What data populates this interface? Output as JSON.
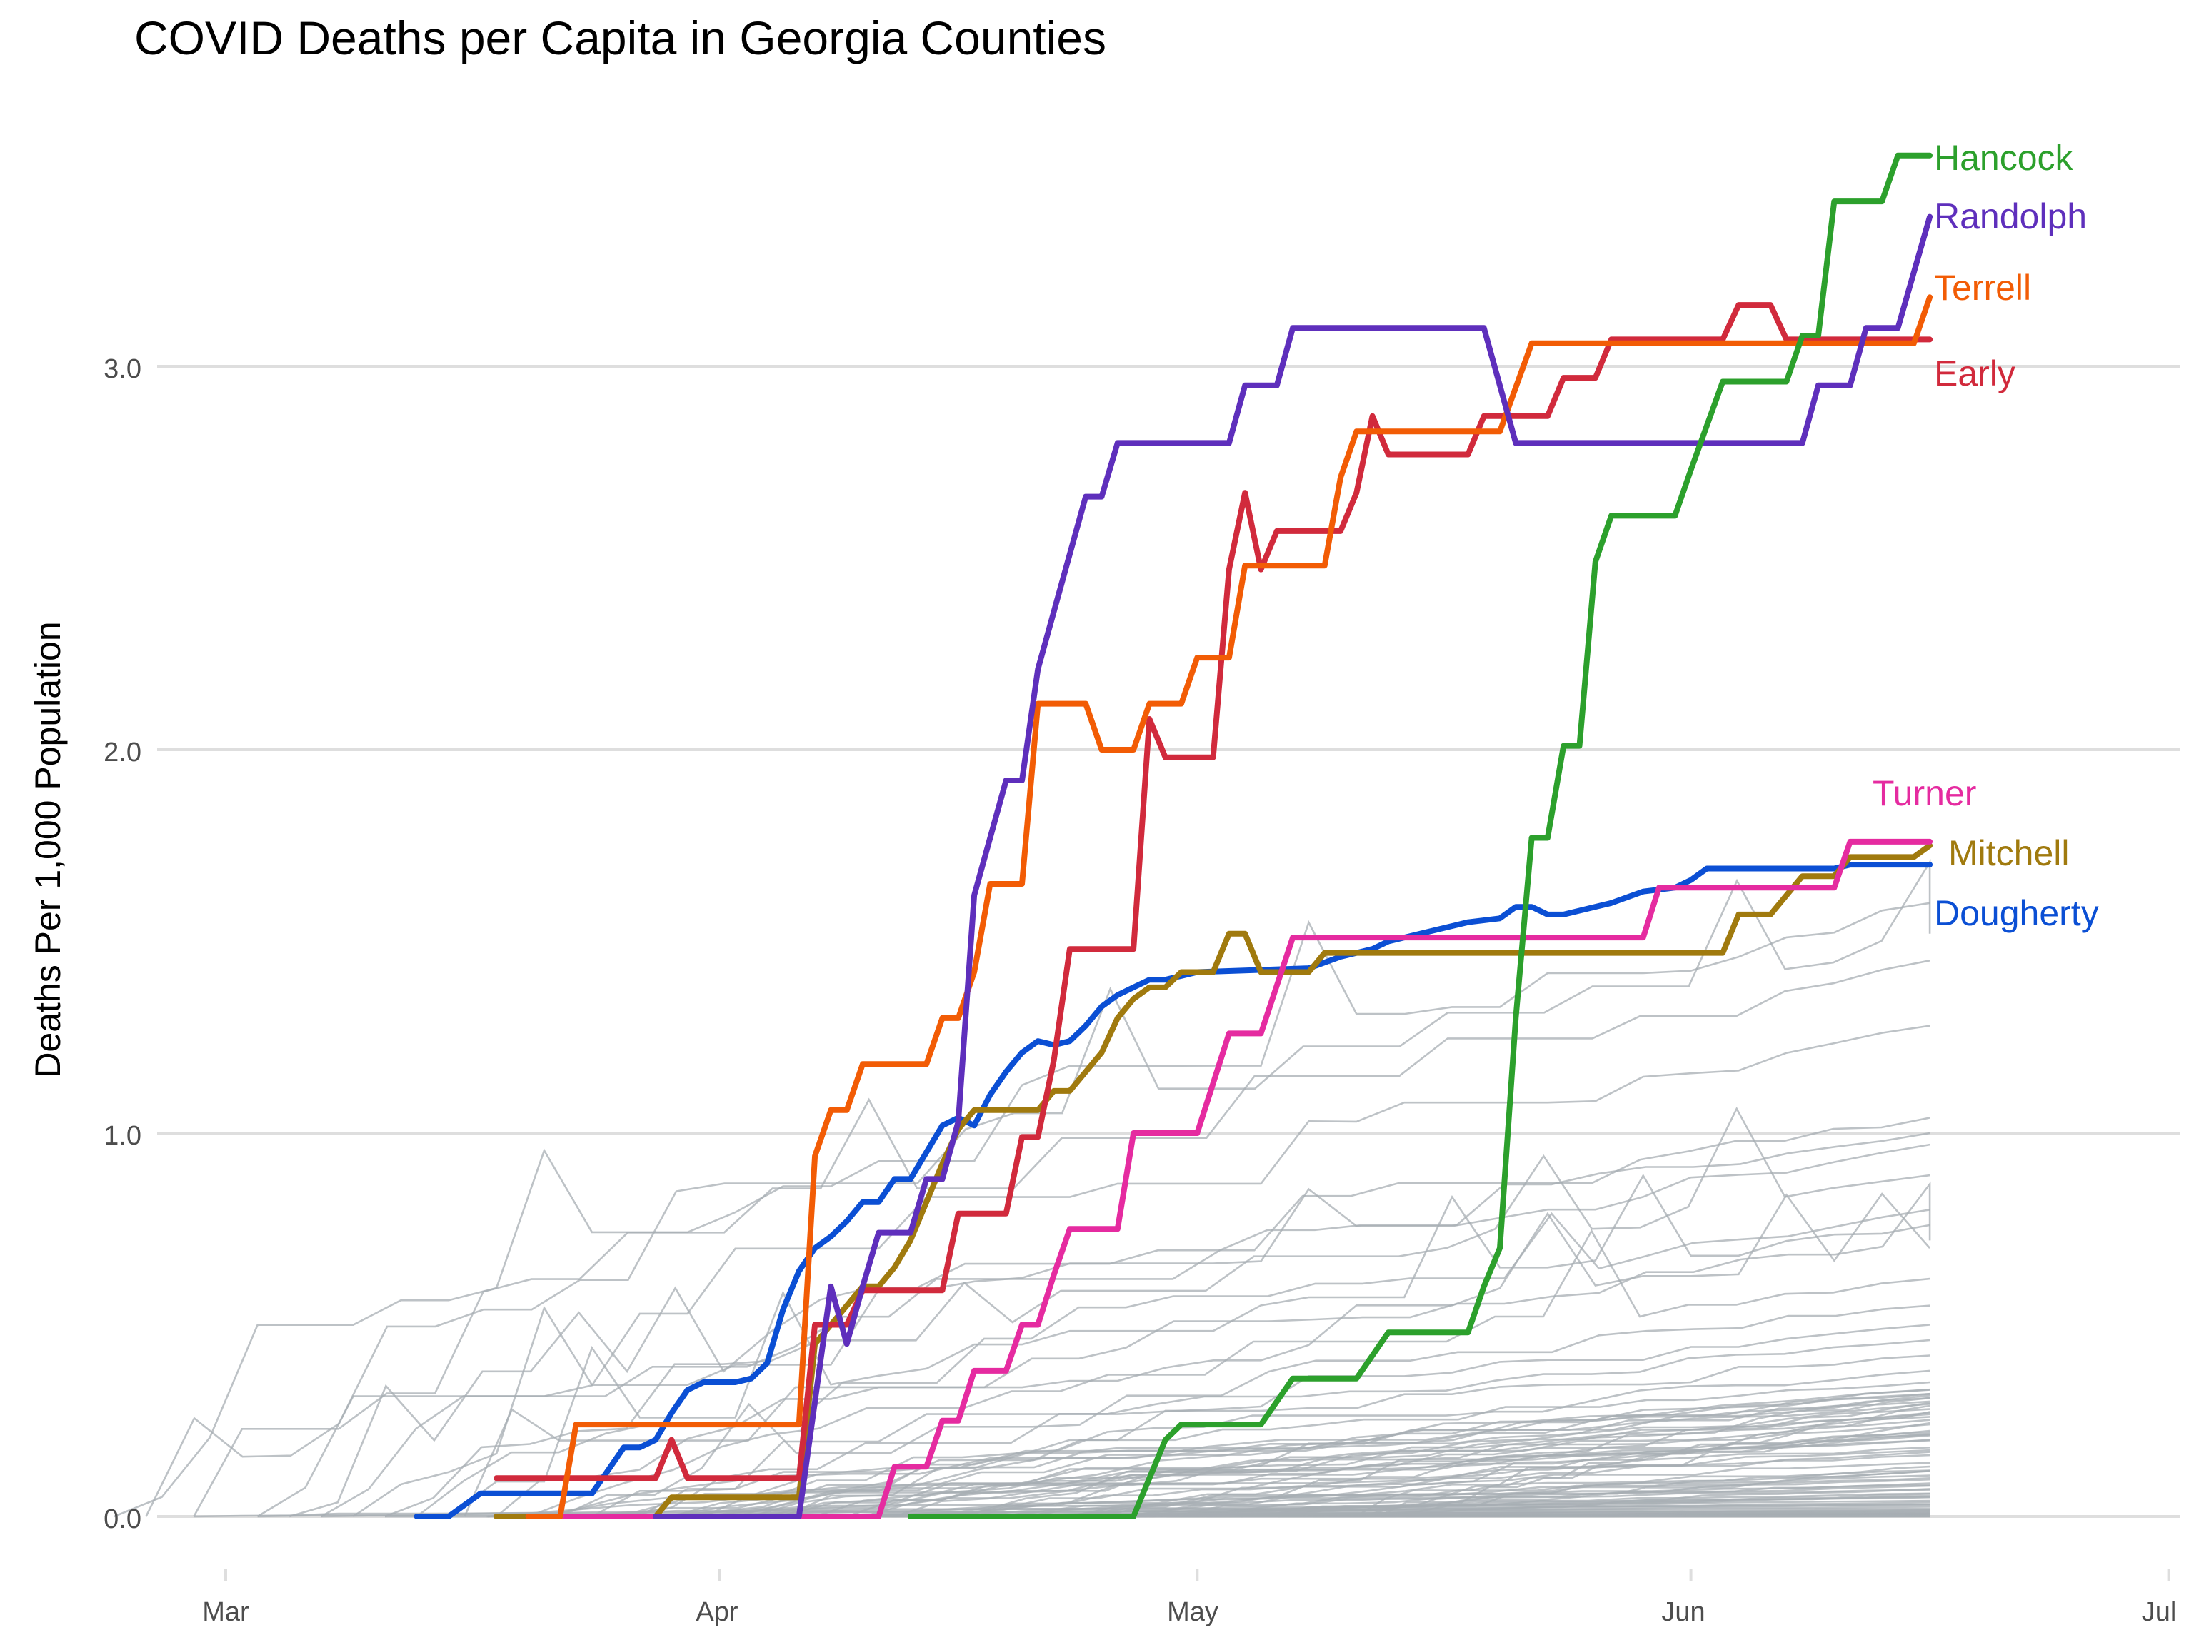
{
  "chart_data": {
    "type": "line",
    "title": "COVID Deaths per Capita in Georgia Counties",
    "xlabel": "",
    "ylabel": "Deaths Per 1,000 Population",
    "x_ticks": [
      "Mar",
      "Apr",
      "May",
      "Jun",
      "Jul"
    ],
    "x_range": [
      "2020-02-28",
      "2020-07-01"
    ],
    "y_ticks": [
      "0.0",
      "1.0",
      "2.0",
      "3.0"
    ],
    "ylim": [
      0,
      3.55
    ],
    "grid": true,
    "legend": "direct labels at line ends",
    "background_series": {
      "name": "",
      "color": "#a7adb3",
      "end_values": [
        1.6,
        1.52,
        1.45,
        1.28,
        1.04,
        1.0,
        0.97,
        0.89,
        0.8,
        0.76,
        0.72,
        0.7,
        0.62,
        0.55,
        0.5,
        0.46,
        0.42,
        0.38,
        0.35,
        0.32,
        0.3,
        0.28,
        0.26,
        0.24,
        0.22,
        0.2,
        0.18,
        0.16,
        0.14,
        0.12,
        0.1,
        0.08,
        0.06,
        0.05,
        0.03,
        0.02,
        0.01,
        0.0
      ],
      "start_days": [
        53,
        55,
        58,
        62,
        64,
        66,
        68,
        70,
        72,
        74,
        75,
        77,
        79,
        81,
        83,
        85,
        86,
        88,
        90,
        92,
        93,
        95,
        97,
        99,
        100,
        102,
        104,
        106,
        108,
        110,
        112,
        115,
        118,
        120,
        58,
        62,
        66,
        70
      ]
    },
    "series": [
      {
        "name": "Hancock",
        "color": "#2ca02c",
        "points": [
          [
            "2020-04-13",
            0
          ],
          [
            "2020-04-27",
            0
          ],
          [
            "2020-04-28",
            0.1
          ],
          [
            "2020-04-29",
            0.2
          ],
          [
            "2020-04-30",
            0.24
          ],
          [
            "2020-05-05",
            0.24
          ],
          [
            "2020-05-06",
            0.3
          ],
          [
            "2020-05-07",
            0.36
          ],
          [
            "2020-05-11",
            0.36
          ],
          [
            "2020-05-12",
            0.42
          ],
          [
            "2020-05-13",
            0.48
          ],
          [
            "2020-05-18",
            0.48
          ],
          [
            "2020-05-19",
            0.6
          ],
          [
            "2020-05-20",
            0.7
          ],
          [
            "2020-05-21",
            1.3
          ],
          [
            "2020-05-22",
            1.77
          ],
          [
            "2020-05-23",
            1.77
          ],
          [
            "2020-05-24",
            2.01
          ],
          [
            "2020-05-25",
            2.01
          ],
          [
            "2020-05-26",
            2.49
          ],
          [
            "2020-05-27",
            2.61
          ],
          [
            "2020-05-31",
            2.61
          ],
          [
            "2020-06-01",
            2.73
          ],
          [
            "2020-06-03",
            2.96
          ],
          [
            "2020-06-07",
            2.96
          ],
          [
            "2020-06-08",
            3.08
          ],
          [
            "2020-06-09",
            3.08
          ],
          [
            "2020-06-10",
            3.43
          ],
          [
            "2020-06-13",
            3.43
          ],
          [
            "2020-06-14",
            3.55
          ],
          [
            "2020-06-16",
            3.55
          ]
        ]
      },
      {
        "name": "Randolph",
        "color": "#5e2fbc",
        "points": [
          [
            "2020-03-28",
            0
          ],
          [
            "2020-04-06",
            0
          ],
          [
            "2020-04-07",
            0.3
          ],
          [
            "2020-04-08",
            0.6
          ],
          [
            "2020-04-09",
            0.45
          ],
          [
            "2020-04-10",
            0.6
          ],
          [
            "2020-04-11",
            0.74
          ],
          [
            "2020-04-13",
            0.74
          ],
          [
            "2020-04-14",
            0.88
          ],
          [
            "2020-04-15",
            0.88
          ],
          [
            "2020-04-16",
            1.03
          ],
          [
            "2020-04-17",
            1.62
          ],
          [
            "2020-04-18",
            1.77
          ],
          [
            "2020-04-19",
            1.92
          ],
          [
            "2020-04-20",
            1.92
          ],
          [
            "2020-04-21",
            2.21
          ],
          [
            "2020-04-22",
            2.36
          ],
          [
            "2020-04-23",
            2.51
          ],
          [
            "2020-04-24",
            2.66
          ],
          [
            "2020-04-25",
            2.66
          ],
          [
            "2020-04-26",
            2.8
          ],
          [
            "2020-05-03",
            2.8
          ],
          [
            "2020-05-04",
            2.95
          ],
          [
            "2020-05-06",
            2.95
          ],
          [
            "2020-05-07",
            3.1
          ],
          [
            "2020-05-19",
            3.1
          ],
          [
            "2020-05-21",
            2.8
          ],
          [
            "2020-06-08",
            2.8
          ],
          [
            "2020-06-09",
            2.95
          ],
          [
            "2020-06-11",
            2.95
          ],
          [
            "2020-06-12",
            3.1
          ],
          [
            "2020-06-14",
            3.1
          ],
          [
            "2020-06-16",
            3.39
          ]
        ]
      },
      {
        "name": "Terrell",
        "color": "#f25c05",
        "points": [
          [
            "2020-03-20",
            0
          ],
          [
            "2020-03-22",
            0
          ],
          [
            "2020-03-23",
            0.24
          ],
          [
            "2020-04-06",
            0.24
          ],
          [
            "2020-04-07",
            0.94
          ],
          [
            "2020-04-08",
            1.06
          ],
          [
            "2020-04-09",
            1.06
          ],
          [
            "2020-04-10",
            1.18
          ],
          [
            "2020-04-14",
            1.18
          ],
          [
            "2020-04-15",
            1.3
          ],
          [
            "2020-04-16",
            1.3
          ],
          [
            "2020-04-17",
            1.42
          ],
          [
            "2020-04-18",
            1.65
          ],
          [
            "2020-04-20",
            1.65
          ],
          [
            "2020-04-21",
            2.12
          ],
          [
            "2020-04-24",
            2.12
          ],
          [
            "2020-04-25",
            2.0
          ],
          [
            "2020-04-27",
            2.0
          ],
          [
            "2020-04-28",
            2.12
          ],
          [
            "2020-04-30",
            2.12
          ],
          [
            "2020-05-01",
            2.24
          ],
          [
            "2020-05-03",
            2.24
          ],
          [
            "2020-05-04",
            2.48
          ],
          [
            "2020-05-09",
            2.48
          ],
          [
            "2020-05-10",
            2.71
          ],
          [
            "2020-05-11",
            2.83
          ],
          [
            "2020-05-20",
            2.83
          ],
          [
            "2020-05-22",
            3.06
          ],
          [
            "2020-06-15",
            3.06
          ],
          [
            "2020-06-16",
            3.18
          ]
        ]
      },
      {
        "name": "Early",
        "color": "#d12a3c",
        "points": [
          [
            "2020-03-18",
            0.1
          ],
          [
            "2020-03-28",
            0.1
          ],
          [
            "2020-03-29",
            0.2
          ],
          [
            "2020-03-30",
            0.1
          ],
          [
            "2020-04-06",
            0.1
          ],
          [
            "2020-04-07",
            0.5
          ],
          [
            "2020-04-09",
            0.5
          ],
          [
            "2020-04-10",
            0.59
          ],
          [
            "2020-04-15",
            0.59
          ],
          [
            "2020-04-16",
            0.79
          ],
          [
            "2020-04-19",
            0.79
          ],
          [
            "2020-04-20",
            0.99
          ],
          [
            "2020-04-21",
            0.99
          ],
          [
            "2020-04-22",
            1.19
          ],
          [
            "2020-04-23",
            1.48
          ],
          [
            "2020-04-27",
            1.48
          ],
          [
            "2020-04-28",
            2.08
          ],
          [
            "2020-04-29",
            1.98
          ],
          [
            "2020-05-02",
            1.98
          ],
          [
            "2020-05-03",
            2.47
          ],
          [
            "2020-05-04",
            2.67
          ],
          [
            "2020-05-05",
            2.47
          ],
          [
            "2020-05-06",
            2.57
          ],
          [
            "2020-05-10",
            2.57
          ],
          [
            "2020-05-11",
            2.67
          ],
          [
            "2020-05-12",
            2.87
          ],
          [
            "2020-05-13",
            2.77
          ],
          [
            "2020-05-18",
            2.77
          ],
          [
            "2020-05-19",
            2.87
          ],
          [
            "2020-05-23",
            2.87
          ],
          [
            "2020-05-24",
            2.97
          ],
          [
            "2020-05-26",
            2.97
          ],
          [
            "2020-05-27",
            3.07
          ],
          [
            "2020-06-03",
            3.07
          ],
          [
            "2020-06-04",
            3.16
          ],
          [
            "2020-06-06",
            3.16
          ],
          [
            "2020-06-07",
            3.07
          ],
          [
            "2020-06-16",
            3.07
          ]
        ]
      },
      {
        "name": "Turner",
        "color": "#e52ba0",
        "points": [
          [
            "2020-03-20",
            0
          ],
          [
            "2020-04-11",
            0
          ],
          [
            "2020-04-12",
            0.13
          ],
          [
            "2020-04-14",
            0.13
          ],
          [
            "2020-04-15",
            0.25
          ],
          [
            "2020-04-16",
            0.25
          ],
          [
            "2020-04-17",
            0.38
          ],
          [
            "2020-04-19",
            0.38
          ],
          [
            "2020-04-20",
            0.5
          ],
          [
            "2020-04-21",
            0.5
          ],
          [
            "2020-04-22",
            0.63
          ],
          [
            "2020-04-23",
            0.75
          ],
          [
            "2020-04-26",
            0.75
          ],
          [
            "2020-04-27",
            1.0
          ],
          [
            "2020-05-01",
            1.0
          ],
          [
            "2020-05-03",
            1.26
          ],
          [
            "2020-05-05",
            1.26
          ],
          [
            "2020-05-07",
            1.51
          ],
          [
            "2020-05-29",
            1.51
          ],
          [
            "2020-05-30",
            1.64
          ],
          [
            "2020-06-10",
            1.64
          ],
          [
            "2020-06-11",
            1.76
          ],
          [
            "2020-06-16",
            1.76
          ]
        ]
      },
      {
        "name": "Mitchell",
        "color": "#a07a0e",
        "points": [
          [
            "2020-03-18",
            0
          ],
          [
            "2020-03-28",
            0
          ],
          [
            "2020-03-29",
            0.05
          ],
          [
            "2020-04-06",
            0.05
          ],
          [
            "2020-04-07",
            0.45
          ],
          [
            "2020-04-08",
            0.5
          ],
          [
            "2020-04-10",
            0.6
          ],
          [
            "2020-04-11",
            0.6
          ],
          [
            "2020-04-12",
            0.65
          ],
          [
            "2020-04-13",
            0.72
          ],
          [
            "2020-04-14",
            0.82
          ],
          [
            "2020-04-15",
            0.92
          ],
          [
            "2020-04-16",
            1.01
          ],
          [
            "2020-04-17",
            1.06
          ],
          [
            "2020-04-20",
            1.06
          ],
          [
            "2020-04-21",
            1.06
          ],
          [
            "2020-04-22",
            1.11
          ],
          [
            "2020-04-23",
            1.11
          ],
          [
            "2020-04-24",
            1.16
          ],
          [
            "2020-04-25",
            1.21
          ],
          [
            "2020-04-26",
            1.3
          ],
          [
            "2020-04-27",
            1.35
          ],
          [
            "2020-04-28",
            1.38
          ],
          [
            "2020-04-29",
            1.38
          ],
          [
            "2020-04-30",
            1.42
          ],
          [
            "2020-05-02",
            1.42
          ],
          [
            "2020-05-03",
            1.52
          ],
          [
            "2020-05-04",
            1.52
          ],
          [
            "2020-05-05",
            1.42
          ],
          [
            "2020-05-08",
            1.42
          ],
          [
            "2020-05-09",
            1.47
          ],
          [
            "2020-06-03",
            1.47
          ],
          [
            "2020-06-04",
            1.57
          ],
          [
            "2020-06-06",
            1.57
          ],
          [
            "2020-06-08",
            1.67
          ],
          [
            "2020-06-10",
            1.67
          ],
          [
            "2020-06-11",
            1.72
          ],
          [
            "2020-06-15",
            1.72
          ],
          [
            "2020-06-16",
            1.75
          ]
        ]
      },
      {
        "name": "Dougherty",
        "color": "#0b4fd4",
        "points": [
          [
            "2020-03-13",
            0
          ],
          [
            "2020-03-15",
            0
          ],
          [
            "2020-03-17",
            0.06
          ],
          [
            "2020-03-24",
            0.06
          ],
          [
            "2020-03-25",
            0.12
          ],
          [
            "2020-03-26",
            0.18
          ],
          [
            "2020-03-27",
            0.18
          ],
          [
            "2020-03-28",
            0.2
          ],
          [
            "2020-03-29",
            0.27
          ],
          [
            "2020-03-30",
            0.33
          ],
          [
            "2020-03-31",
            0.35
          ],
          [
            "2020-04-02",
            0.35
          ],
          [
            "2020-04-03",
            0.36
          ],
          [
            "2020-04-04",
            0.4
          ],
          [
            "2020-04-05",
            0.54
          ],
          [
            "2020-04-06",
            0.64
          ],
          [
            "2020-04-07",
            0.7
          ],
          [
            "2020-04-08",
            0.73
          ],
          [
            "2020-04-09",
            0.77
          ],
          [
            "2020-04-10",
            0.82
          ],
          [
            "2020-04-11",
            0.82
          ],
          [
            "2020-04-12",
            0.88
          ],
          [
            "2020-04-13",
            0.88
          ],
          [
            "2020-04-14",
            0.95
          ],
          [
            "2020-04-15",
            1.02
          ],
          [
            "2020-04-16",
            1.04
          ],
          [
            "2020-04-17",
            1.02
          ],
          [
            "2020-04-18",
            1.1
          ],
          [
            "2020-04-19",
            1.16
          ],
          [
            "2020-04-20",
            1.21
          ],
          [
            "2020-04-21",
            1.24
          ],
          [
            "2020-04-22",
            1.23
          ],
          [
            "2020-04-23",
            1.24
          ],
          [
            "2020-04-24",
            1.28
          ],
          [
            "2020-04-25",
            1.33
          ],
          [
            "2020-04-26",
            1.36
          ],
          [
            "2020-04-27",
            1.38
          ],
          [
            "2020-04-28",
            1.4
          ],
          [
            "2020-04-29",
            1.4
          ],
          [
            "2020-04-30",
            1.41
          ],
          [
            "2020-05-01",
            1.42
          ],
          [
            "2020-05-08",
            1.43
          ],
          [
            "2020-05-10",
            1.46
          ],
          [
            "2020-05-12",
            1.48
          ],
          [
            "2020-05-13",
            1.5
          ],
          [
            "2020-05-14",
            1.51
          ],
          [
            "2020-05-16",
            1.53
          ],
          [
            "2020-05-18",
            1.55
          ],
          [
            "2020-05-20",
            1.56
          ],
          [
            "2020-05-21",
            1.59
          ],
          [
            "2020-05-22",
            1.59
          ],
          [
            "2020-05-23",
            1.57
          ],
          [
            "2020-05-24",
            1.57
          ],
          [
            "2020-05-25",
            1.58
          ],
          [
            "2020-05-27",
            1.6
          ],
          [
            "2020-05-29",
            1.63
          ],
          [
            "2020-05-31",
            1.64
          ],
          [
            "2020-06-01",
            1.66
          ],
          [
            "2020-06-02",
            1.69
          ],
          [
            "2020-06-04",
            1.69
          ],
          [
            "2020-06-10",
            1.69
          ],
          [
            "2020-06-11",
            1.7
          ],
          [
            "2020-06-16",
            1.7
          ]
        ]
      }
    ]
  }
}
